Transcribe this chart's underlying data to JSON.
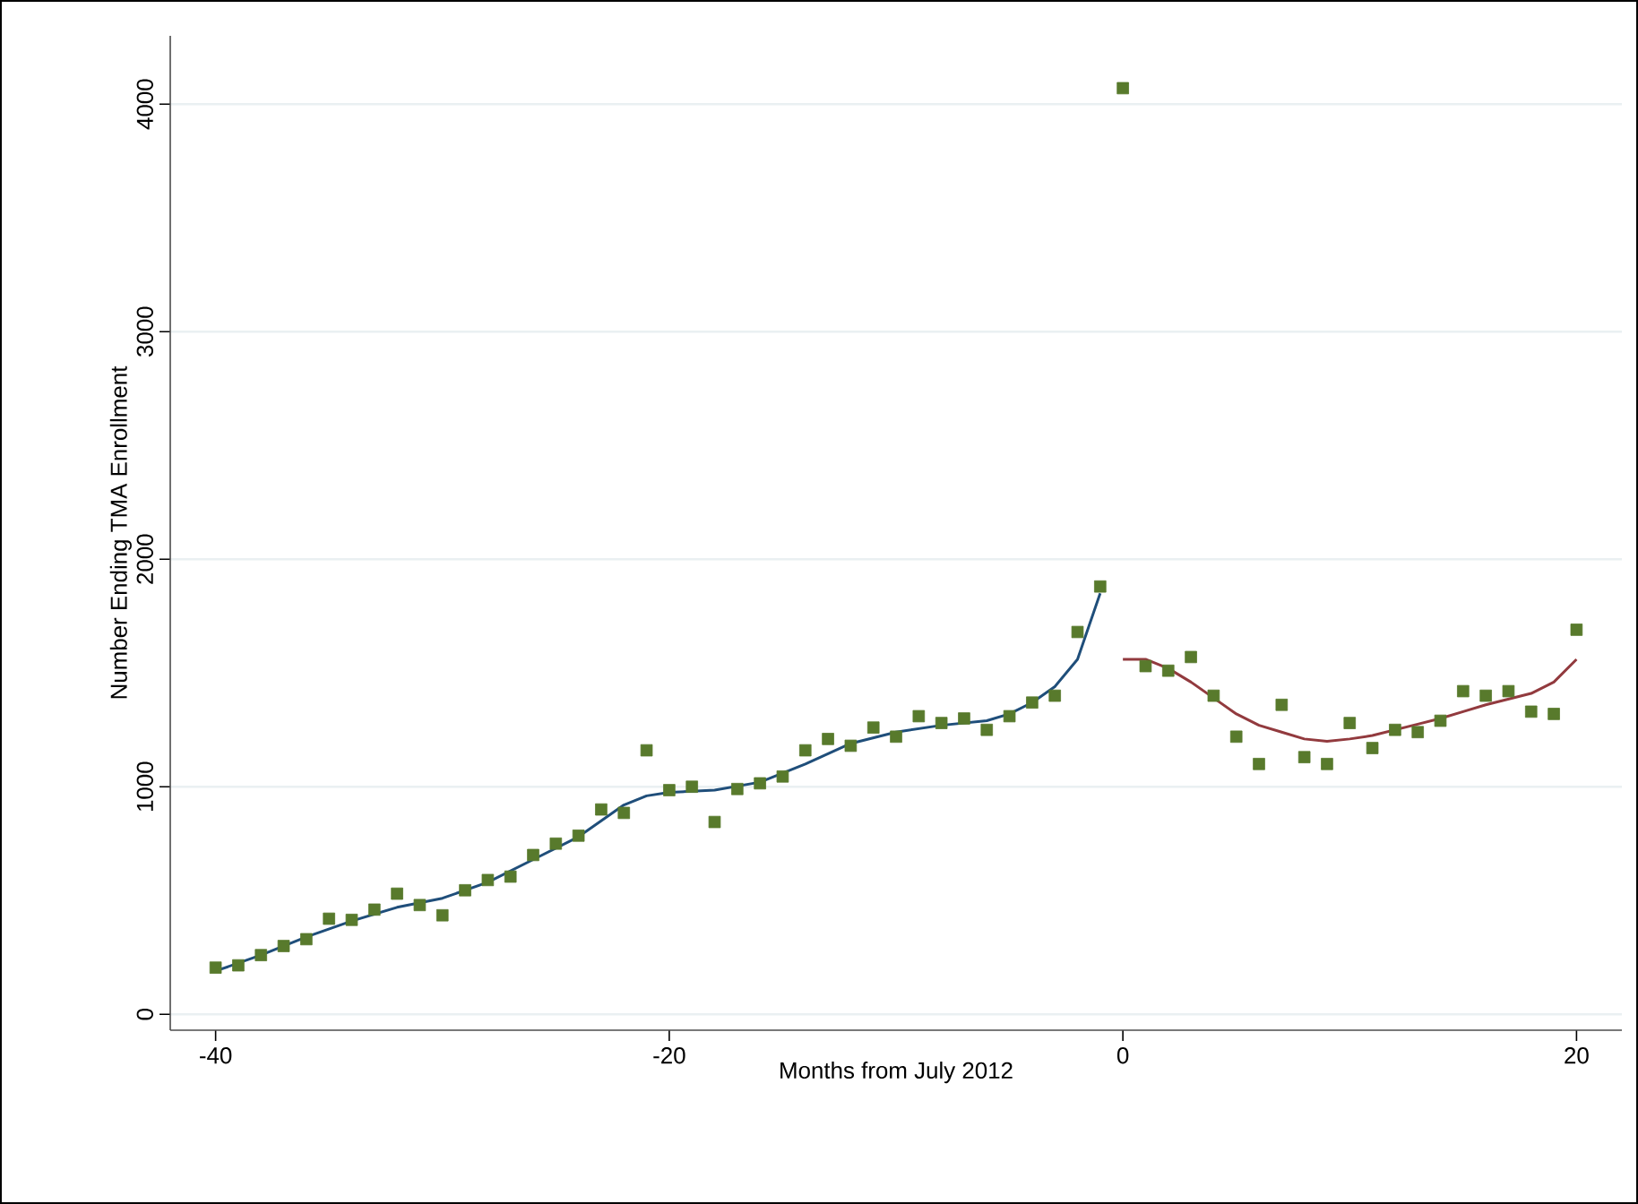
{
  "chart_data": {
    "type": "scatter",
    "xlabel": "Months from July 2012",
    "ylabel": "Number Ending TMA Enrollment",
    "xlim": [
      -42,
      22
    ],
    "ylim": [
      -70,
      4300
    ],
    "xticks": [
      -40,
      -20,
      0,
      20
    ],
    "yticks": [
      0,
      1000,
      2000,
      3000,
      4000
    ],
    "grid": "y",
    "series": [
      {
        "marker": "square",
        "color": "#587a2c",
        "x": [
          -40,
          -39,
          -38,
          -37,
          -36,
          -35,
          -34,
          -33,
          -32,
          -31,
          -30,
          -29,
          -28,
          -27,
          -26,
          -25,
          -24,
          -23,
          -22,
          -21,
          -20,
          -19,
          -18,
          -17,
          -16,
          -15,
          -14,
          -13,
          -12,
          -11,
          -10,
          -9,
          -8,
          -7,
          -6,
          -5,
          -4,
          -3,
          -2,
          -1,
          0,
          1,
          2,
          3,
          4,
          5,
          6,
          7,
          8,
          9,
          10,
          11,
          12,
          13,
          14,
          15,
          16,
          17,
          18,
          19,
          20
        ],
        "values": [
          205,
          215,
          260,
          300,
          330,
          420,
          415,
          460,
          530,
          480,
          435,
          545,
          590,
          605,
          700,
          750,
          785,
          900,
          885,
          1160,
          985,
          1000,
          845,
          990,
          1015,
          1045,
          1160,
          1210,
          1180,
          1260,
          1220,
          1310,
          1280,
          1300,
          1250,
          1310,
          1370,
          1400,
          1680,
          1880,
          4070,
          1530,
          1510,
          1570,
          1400,
          1220,
          1100,
          1360,
          1130,
          1100,
          1280,
          1170,
          1250,
          1240,
          1290,
          1420,
          1400,
          1420,
          1330,
          1320,
          1690
        ]
      },
      {
        "type": "line",
        "marker": "none",
        "color": "#1f4e7a",
        "x": [
          -40,
          -38,
          -36,
          -34,
          -32,
          -30,
          -28,
          -26,
          -24,
          -22,
          -21,
          -20,
          -18,
          -16,
          -14,
          -12,
          -10,
          -8,
          -6,
          -5,
          -4,
          -3,
          -2,
          -1
        ],
        "values": [
          190,
          260,
          340,
          410,
          470,
          510,
          580,
          680,
          780,
          920,
          960,
          975,
          985,
          1020,
          1100,
          1190,
          1240,
          1270,
          1290,
          1320,
          1370,
          1440,
          1560,
          1850
        ]
      },
      {
        "type": "line",
        "marker": "none",
        "color": "#923a3e",
        "x": [
          0,
          1,
          2,
          3,
          4,
          5,
          6,
          7,
          8,
          9,
          10,
          11,
          12,
          13,
          14,
          15,
          16,
          17,
          18,
          19,
          20
        ],
        "values": [
          1560,
          1560,
          1520,
          1460,
          1390,
          1320,
          1270,
          1240,
          1210,
          1200,
          1210,
          1225,
          1250,
          1275,
          1300,
          1330,
          1360,
          1385,
          1410,
          1460,
          1560
        ]
      }
    ]
  }
}
